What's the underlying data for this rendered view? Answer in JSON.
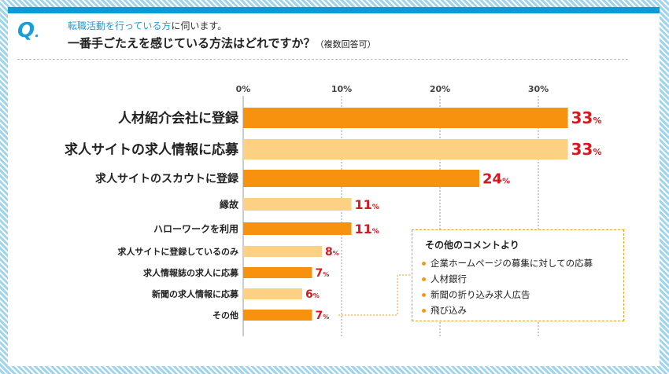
{
  "question": {
    "mark": "Q",
    "line1_accent": "転職活動を行っている方",
    "line1_rest": "に伺います。",
    "line2_main": "一番手ごたえを感じている方法はどれですか？",
    "line2_note": "（複数回答可）"
  },
  "chart_data": {
    "type": "bar",
    "orientation": "horizontal",
    "categories": [
      "人材紹介会社に登録",
      "求人サイトの求人情報に応募",
      "求人サイトのスカウトに登録",
      "縁故",
      "ハローワークを利用",
      "求人サイトに登録しているのみ",
      "求人情報誌の求人に応募",
      "新聞の求人情報に応募",
      "その他"
    ],
    "values": [
      33,
      33,
      24,
      11,
      11,
      8,
      7,
      6,
      7
    ],
    "value_unit": "%",
    "x_ticks": [
      "0%",
      "10%",
      "20%",
      "30%"
    ],
    "xlim": [
      0,
      35
    ],
    "grid": true,
    "bar_colors": [
      "#f7920e",
      "#fdd183",
      "#f7920e",
      "#fdd183",
      "#f7920e",
      "#fdd183",
      "#f7920e",
      "#fdd183",
      "#f7920e"
    ]
  },
  "comments": {
    "title": "その他のコメントより",
    "items": [
      "企業ホームページの募集に対しての応募",
      "人材銀行",
      "新聞の折り込み求人広告",
      "飛び込み"
    ]
  }
}
